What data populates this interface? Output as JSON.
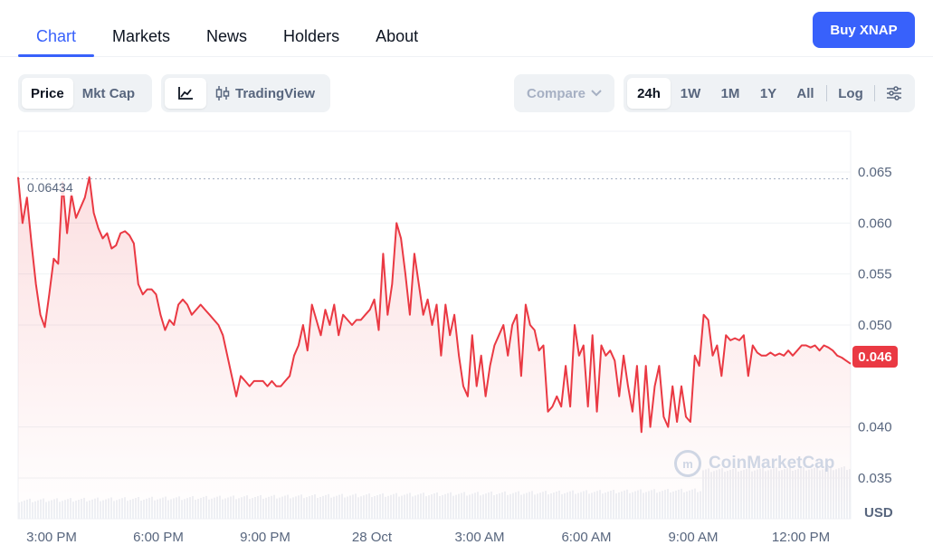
{
  "tabs": [
    {
      "label": "Chart",
      "active": true
    },
    {
      "label": "Markets",
      "active": false
    },
    {
      "label": "News",
      "active": false
    },
    {
      "label": "Holders",
      "active": false
    },
    {
      "label": "About",
      "active": false
    }
  ],
  "buy_button": "Buy XNAP",
  "toolbar": {
    "metric_toggle": [
      "Price",
      "Mkt Cap"
    ],
    "chart_type": {
      "line_icon": "line-chart-icon",
      "tradingview_label": "TradingView",
      "tradingview_icon": "candlestick-icon"
    },
    "compare_label": "Compare",
    "ranges": [
      "24h",
      "1W",
      "1M",
      "1Y",
      "All"
    ],
    "log_label": "Log",
    "settings_icon": "sliders-icon"
  },
  "chart_data": {
    "type": "line",
    "currency_label": "USD",
    "current_price": "0.046",
    "max_label": "0.06434",
    "y_ticks": [
      "0.065",
      "0.060",
      "0.055",
      "0.050",
      "0.040",
      "0.035"
    ],
    "ylim": [
      0.031,
      0.069
    ],
    "x_ticks": [
      "3:00 PM",
      "6:00 PM",
      "9:00 PM",
      "28 Oct",
      "3:00 AM",
      "6:00 AM",
      "9:00 AM",
      "12:00 PM"
    ],
    "line_color": "#ea3943",
    "watermark": "CoinMarketCap",
    "values": [
      0.0645,
      0.06,
      0.0625,
      0.058,
      0.054,
      0.051,
      0.0498,
      0.053,
      0.0565,
      0.056,
      0.064,
      0.059,
      0.0628,
      0.0605,
      0.0615,
      0.0625,
      0.0645,
      0.061,
      0.0595,
      0.0585,
      0.059,
      0.0575,
      0.0578,
      0.059,
      0.0592,
      0.0588,
      0.058,
      0.054,
      0.053,
      0.0535,
      0.0535,
      0.053,
      0.051,
      0.0495,
      0.0505,
      0.05,
      0.052,
      0.0525,
      0.052,
      0.051,
      0.0515,
      0.052,
      0.0515,
      0.051,
      0.0505,
      0.05,
      0.049,
      0.047,
      0.045,
      0.043,
      0.045,
      0.0445,
      0.044,
      0.0445,
      0.0445,
      0.0445,
      0.044,
      0.0445,
      0.044,
      0.044,
      0.0445,
      0.045,
      0.047,
      0.048,
      0.05,
      0.0475,
      0.052,
      0.0505,
      0.049,
      0.0515,
      0.05,
      0.052,
      0.049,
      0.051,
      0.0505,
      0.05,
      0.0505,
      0.0505,
      0.051,
      0.0515,
      0.0525,
      0.0495,
      0.057,
      0.051,
      0.054,
      0.06,
      0.0585,
      0.055,
      0.051,
      0.057,
      0.054,
      0.051,
      0.0525,
      0.05,
      0.052,
      0.047,
      0.052,
      0.049,
      0.051,
      0.047,
      0.044,
      0.043,
      0.049,
      0.044,
      0.047,
      0.043,
      0.046,
      0.048,
      0.049,
      0.05,
      0.047,
      0.05,
      0.051,
      0.045,
      0.052,
      0.05,
      0.0495,
      0.0475,
      0.048,
      0.0415,
      0.042,
      0.043,
      0.042,
      0.046,
      0.042,
      0.05,
      0.047,
      0.048,
      0.042,
      0.049,
      0.0415,
      0.048,
      0.047,
      0.0475,
      0.0465,
      0.043,
      0.047,
      0.044,
      0.0415,
      0.046,
      0.0395,
      0.046,
      0.04,
      0.044,
      0.046,
      0.041,
      0.04,
      0.044,
      0.0405,
      0.044,
      0.041,
      0.0405,
      0.047,
      0.046,
      0.051,
      0.0505,
      0.047,
      0.048,
      0.045,
      0.049,
      0.0485,
      0.0487,
      0.0485,
      0.049,
      0.045,
      0.048,
      0.0473,
      0.047,
      0.047,
      0.0473,
      0.047,
      0.0472,
      0.047,
      0.0475,
      0.047,
      0.0475,
      0.048,
      0.048,
      0.0478,
      0.048,
      0.0475,
      0.048,
      0.0478,
      0.0475,
      0.047,
      0.0468,
      0.0465,
      0.0462
    ]
  }
}
